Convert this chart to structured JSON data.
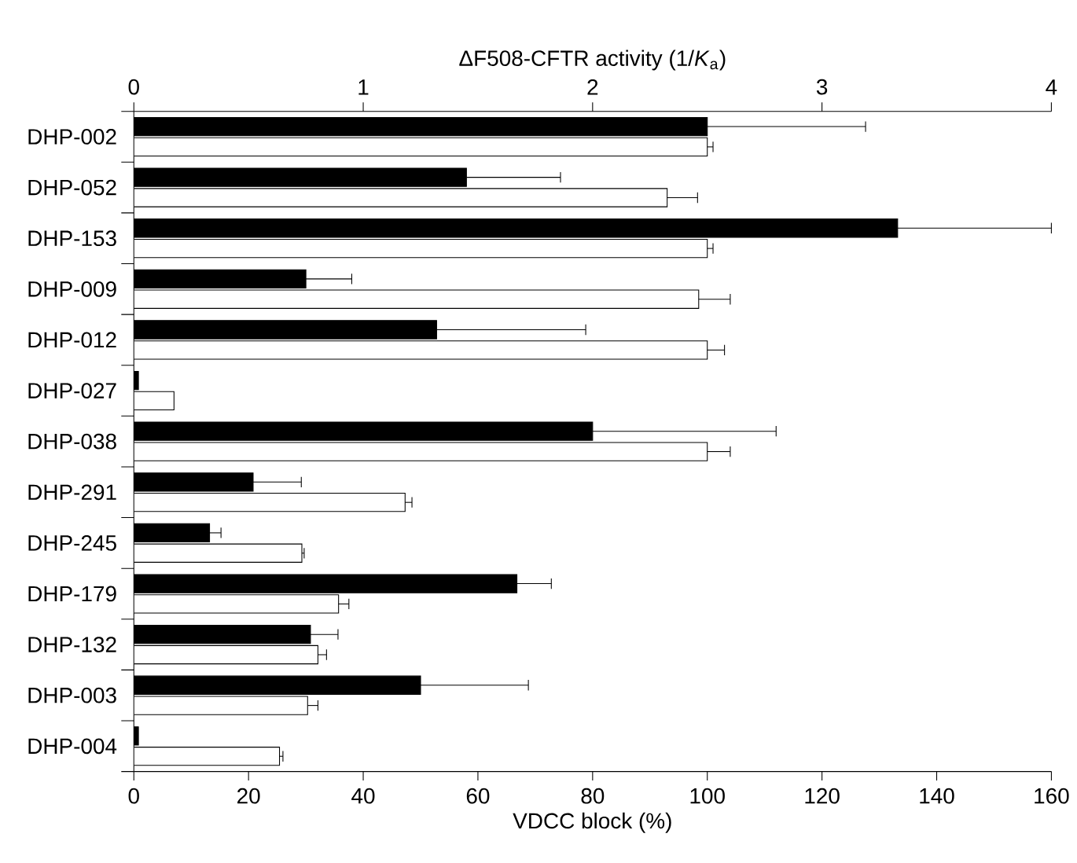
{
  "chart_data": {
    "type": "bar",
    "orientation": "horizontal",
    "xlabel": "VDCC block (%)",
    "x2label": "ΔF508-CFTR activity (1/*K*$_{a}$)",
    "categories": [
      "DHP-002",
      "DHP-052",
      "DHP-153",
      "DHP-009",
      "DHP-012",
      "DHP-027",
      "DHP-038",
      "DHP-291",
      "DHP-245",
      "DHP-179",
      "DHP-132",
      "DHP-003",
      "DHP-004"
    ],
    "series": [
      {
        "color": "#000000",
        "axis": "x2",
        "values": [
          2.5,
          1.45,
          3.33,
          0.75,
          1.32,
          0.02,
          2.0,
          0.52,
          0.33,
          1.67,
          0.77,
          1.25,
          0.02
        ],
        "errors": [
          [
            2.5,
            3.19
          ],
          [
            1.45,
            1.86
          ],
          [
            3.33,
            4.0
          ],
          [
            0.75,
            0.95
          ],
          [
            1.32,
            1.97
          ],
          null,
          [
            2.0,
            2.8
          ],
          [
            0.52,
            0.73
          ],
          [
            0.33,
            0.38
          ],
          [
            1.67,
            1.82
          ],
          [
            0.77,
            0.89
          ],
          [
            1.25,
            1.72
          ],
          null
        ]
      },
      {
        "color": "#ffffff",
        "values": [
          100,
          93,
          100,
          98.5,
          100,
          7,
          100,
          47.3,
          29.3,
          35.7,
          32.1,
          30.3,
          25.4
        ],
        "errors": [
          [
            100,
            101
          ],
          [
            93,
            98.3
          ],
          [
            100,
            101
          ],
          [
            98.5,
            104
          ],
          [
            100,
            103
          ],
          null,
          [
            100,
            104
          ],
          [
            47.3,
            48.5
          ],
          [
            29.3,
            29.7
          ],
          [
            35.7,
            37.5
          ],
          [
            32.1,
            33.6
          ],
          [
            30.3,
            32.1
          ],
          [
            25.4,
            26
          ]
        ]
      }
    ],
    "xlim": [
      0,
      160
    ],
    "xticks": [
      0,
      20,
      40,
      60,
      80,
      100,
      120,
      140,
      160
    ],
    "x2lim": [
      0,
      4
    ],
    "x2ticks": [
      0,
      1,
      2,
      3,
      4
    ]
  }
}
